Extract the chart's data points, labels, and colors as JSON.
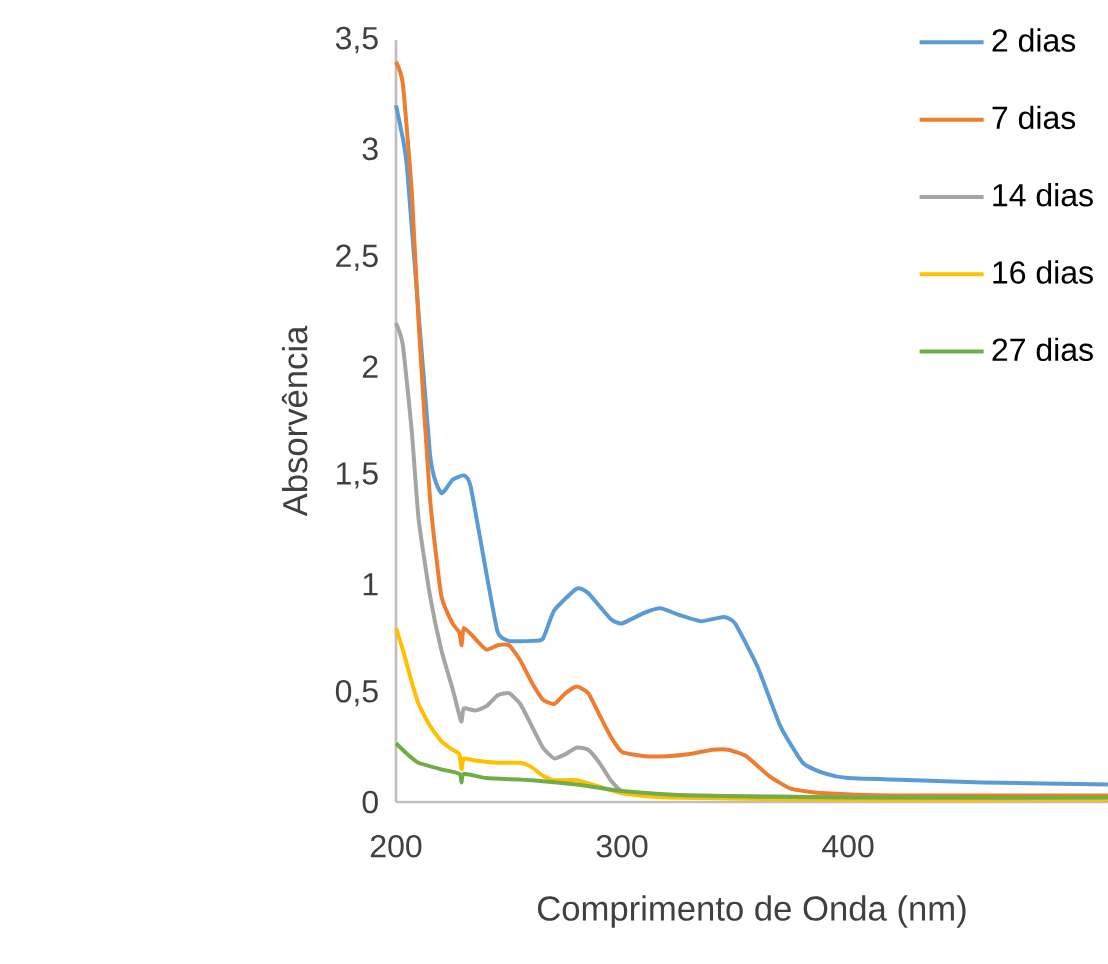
{
  "chart_data": {
    "type": "line",
    "xlabel": "Comprimento de Onda (nm)",
    "ylabel": "Absorvência",
    "xlim": [
      200,
      515
    ],
    "ylim": [
      0,
      3.5
    ],
    "xticks": [
      200,
      300,
      400
    ],
    "yticks": [
      0,
      {
        "value": 0.5,
        "label": "0,5"
      },
      1,
      {
        "value": 1.5,
        "label": "1,5"
      },
      2,
      {
        "value": 2.5,
        "label": "2,5"
      },
      3,
      {
        "value": 3.5,
        "label": "3,5"
      }
    ],
    "grid": false,
    "legend": "top right",
    "marker": "none",
    "line_style": "solid",
    "series": [
      {
        "name": "2 dias",
        "color": "#5b9bd5",
        "x": [
          200,
          202,
          205,
          215,
          220,
          225,
          230,
          233,
          240,
          245,
          250,
          260,
          265,
          270,
          280,
          285,
          295,
          300,
          310,
          317,
          325,
          335,
          345,
          350,
          360,
          370,
          380,
          390,
          400,
          430,
          460,
          515
        ],
        "values": [
          3.2,
          3.1,
          2.9,
          1.6,
          1.42,
          1.48,
          1.5,
          1.45,
          1.05,
          0.78,
          0.74,
          0.74,
          0.75,
          0.88,
          0.98,
          0.96,
          0.84,
          0.82,
          0.87,
          0.89,
          0.86,
          0.83,
          0.85,
          0.82,
          0.62,
          0.35,
          0.18,
          0.13,
          0.11,
          0.1,
          0.09,
          0.08
        ]
      },
      {
        "name": "7 dias",
        "color": "#ed7d31",
        "x": [
          200,
          203,
          207,
          210,
          215,
          220,
          225,
          228,
          229,
          230,
          235,
          240,
          245,
          250,
          255,
          260,
          265,
          270,
          275,
          280,
          285,
          290,
          295,
          300,
          310,
          320,
          330,
          340,
          347,
          355,
          365,
          375,
          390,
          420,
          515
        ],
        "values": [
          3.4,
          3.3,
          2.8,
          2.2,
          1.4,
          0.95,
          0.82,
          0.78,
          0.72,
          0.8,
          0.75,
          0.7,
          0.72,
          0.72,
          0.65,
          0.55,
          0.47,
          0.45,
          0.5,
          0.53,
          0.5,
          0.4,
          0.3,
          0.23,
          0.21,
          0.21,
          0.22,
          0.24,
          0.24,
          0.21,
          0.12,
          0.06,
          0.04,
          0.03,
          0.03
        ]
      },
      {
        "name": "14 dias",
        "color": "#a5a5a5",
        "x": [
          200,
          203,
          207,
          210,
          215,
          220,
          225,
          228,
          229,
          230,
          235,
          240,
          245,
          250,
          255,
          260,
          265,
          270,
          275,
          280,
          285,
          290,
          295,
          300,
          310,
          330,
          400,
          515
        ],
        "values": [
          2.2,
          2.1,
          1.7,
          1.3,
          0.95,
          0.7,
          0.52,
          0.4,
          0.37,
          0.43,
          0.42,
          0.44,
          0.49,
          0.5,
          0.45,
          0.35,
          0.25,
          0.2,
          0.22,
          0.25,
          0.24,
          0.18,
          0.1,
          0.05,
          0.03,
          0.03,
          0.02,
          0.01
        ]
      },
      {
        "name": "16 dias",
        "color": "#ffc000",
        "x": [
          200,
          203,
          207,
          210,
          215,
          220,
          225,
          228,
          229,
          230,
          235,
          245,
          255,
          260,
          265,
          270,
          280,
          290,
          300,
          320,
          400,
          515
        ],
        "values": [
          0.8,
          0.7,
          0.55,
          0.45,
          0.35,
          0.28,
          0.24,
          0.22,
          0.15,
          0.2,
          0.19,
          0.18,
          0.18,
          0.16,
          0.12,
          0.1,
          0.1,
          0.07,
          0.04,
          0.02,
          0.01,
          0.01
        ]
      },
      {
        "name": "27 dias",
        "color": "#70ad47",
        "x": [
          200,
          205,
          210,
          220,
          228,
          229,
          230,
          240,
          260,
          280,
          300,
          330,
          400,
          515
        ],
        "values": [
          0.27,
          0.22,
          0.18,
          0.15,
          0.13,
          0.09,
          0.13,
          0.11,
          0.1,
          0.08,
          0.05,
          0.03,
          0.02,
          0.02
        ]
      }
    ]
  }
}
